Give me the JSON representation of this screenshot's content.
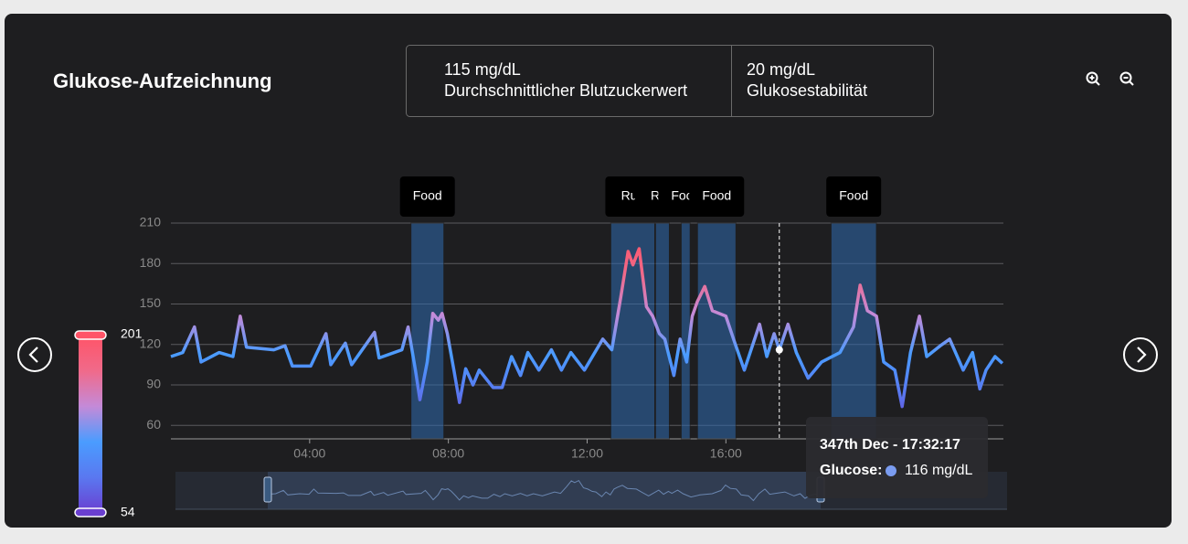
{
  "header": {
    "title": "Glukose-Aufzeichnung",
    "stats": [
      {
        "value": "115 mg/dL",
        "label": "Durchschnittlicher Blutzuckerwert"
      },
      {
        "value": "20 mg/dL",
        "label": "Glukosestabilität"
      }
    ]
  },
  "chart_data": {
    "type": "line",
    "x": [
      0,
      0.34,
      0.68,
      0.87,
      1.39,
      1.79,
      2.0,
      2.18,
      2.97,
      3.29,
      3.5,
      4.03,
      4.47,
      4.61,
      5.03,
      5.21,
      5.87,
      6.0,
      6.66,
      6.84,
      7.05,
      7.18,
      7.39,
      7.55,
      7.71,
      7.82,
      7.97,
      8.16,
      8.32,
      8.5,
      8.71,
      8.89,
      9.29,
      9.55,
      9.82,
      10.08,
      10.29,
      10.61,
      10.97,
      11.26,
      11.53,
      11.92,
      12.45,
      12.71,
      12.97,
      13.18,
      13.32,
      13.5,
      13.71,
      13.89,
      14.08,
      14.24,
      14.5,
      14.68,
      14.87,
      15.03,
      15.18,
      15.39,
      15.61,
      16.0,
      16.26,
      16.53,
      16.79,
      16.97,
      17.18,
      17.39,
      17.54,
      17.79,
      18.03,
      18.37,
      18.76,
      19.29,
      19.68,
      19.87,
      20.08,
      20.34,
      20.55,
      20.87,
      21.08,
      21.32,
      21.58,
      21.79,
      22.18,
      22.45,
      22.84,
      23.11,
      23.32,
      23.5,
      23.76,
      23.97
    ],
    "values": [
      111,
      114,
      133,
      107,
      114,
      111,
      141,
      118,
      116,
      119,
      104,
      104,
      128,
      105,
      121,
      105,
      129,
      110,
      116,
      133,
      101,
      79,
      107,
      143,
      138,
      143,
      128,
      101,
      77,
      102,
      90,
      101,
      88,
      88,
      111,
      97,
      114,
      101,
      116,
      101,
      114,
      101,
      124,
      116,
      155,
      189,
      179,
      191,
      148,
      141,
      128,
      124,
      97,
      124,
      107,
      141,
      152,
      163,
      145,
      141,
      121,
      101,
      121,
      135,
      111,
      128,
      116,
      135,
      114,
      95,
      107,
      114,
      133,
      164,
      145,
      141,
      107,
      101,
      74,
      114,
      141,
      111,
      119,
      124,
      101,
      114,
      87,
      101,
      111,
      106
    ],
    "xlim": [
      0,
      24
    ],
    "xticks": [
      {
        "value": 4,
        "label": "04:00"
      },
      {
        "value": 8,
        "label": "08:00"
      },
      {
        "value": 12,
        "label": "12:00"
      },
      {
        "value": 16,
        "label": "16:00"
      }
    ],
    "ylim": [
      50,
      210
    ],
    "yticks": [
      60,
      90,
      120,
      150,
      180,
      210
    ],
    "grid": true,
    "events": [
      {
        "label": "Food",
        "start": 6.92,
        "end": 7.87
      },
      {
        "label": "Run",
        "start": 12.68,
        "end": 13.95
      },
      {
        "label": "Run",
        "start": 13.97,
        "end": 14.37
      },
      {
        "label": "Food",
        "start": 14.71,
        "end": 14.97
      },
      {
        "label": "Food",
        "start": 15.18,
        "end": 16.29
      },
      {
        "label": "Food",
        "start": 19.03,
        "end": 20.34
      }
    ],
    "event_color": "#2f6bb0",
    "color_scale": {
      "max": 201,
      "min": 54,
      "colors": [
        "#ff5468",
        "#f06a8a",
        "#c48ad8",
        "#4a9cff",
        "#5a78f0",
        "#6a3fd0"
      ]
    },
    "tooltip": {
      "title": "347th Dec - 17:32:17",
      "label": "Glucose:",
      "x": 17.54,
      "value": 116,
      "value_label": "116 mg/dL",
      "color": "#7a9cf0"
    }
  }
}
